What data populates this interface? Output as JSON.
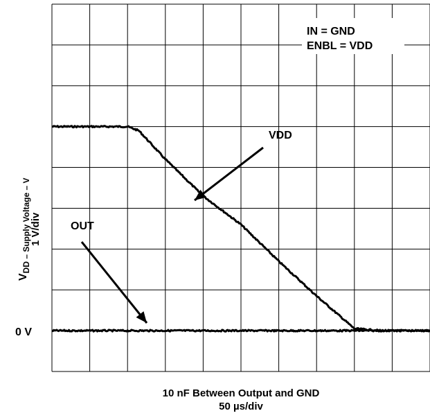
{
  "chart_data": {
    "type": "line",
    "annotations": {
      "in": "IN = GND",
      "enbl": "ENBL = VDD",
      "vdd_label": "VDD",
      "out_label": "OUT"
    },
    "ylabel_main": "DD – Supply Voltage – V",
    "ylabel_prefix": "V",
    "ylabel_scale": "1 V/div",
    "zero_label": "0 V",
    "xlabel": "10 nF Between Output and GND",
    "xscale_label": "50 µs/div",
    "grid": true,
    "x_divisions": 10,
    "y_divisions": 9,
    "x_unit": "µs",
    "y_unit": "V",
    "xlim": [
      0,
      500
    ],
    "ylim": [
      -1,
      8
    ],
    "series": [
      {
        "name": "VDD",
        "x": [
          0,
          50,
          100,
          115,
          150,
          200,
          250,
          300,
          350,
          400,
          435,
          450,
          500
        ],
        "y": [
          5.0,
          5.0,
          5.0,
          4.9,
          4.2,
          3.3,
          2.6,
          1.7,
          0.85,
          0.05,
          0.0,
          0.0,
          0.0
        ]
      },
      {
        "name": "OUT",
        "x": [
          0,
          100,
          200,
          300,
          400,
          500
        ],
        "y": [
          0.0,
          0.0,
          0.0,
          0.0,
          0.0,
          0.0
        ]
      }
    ]
  }
}
